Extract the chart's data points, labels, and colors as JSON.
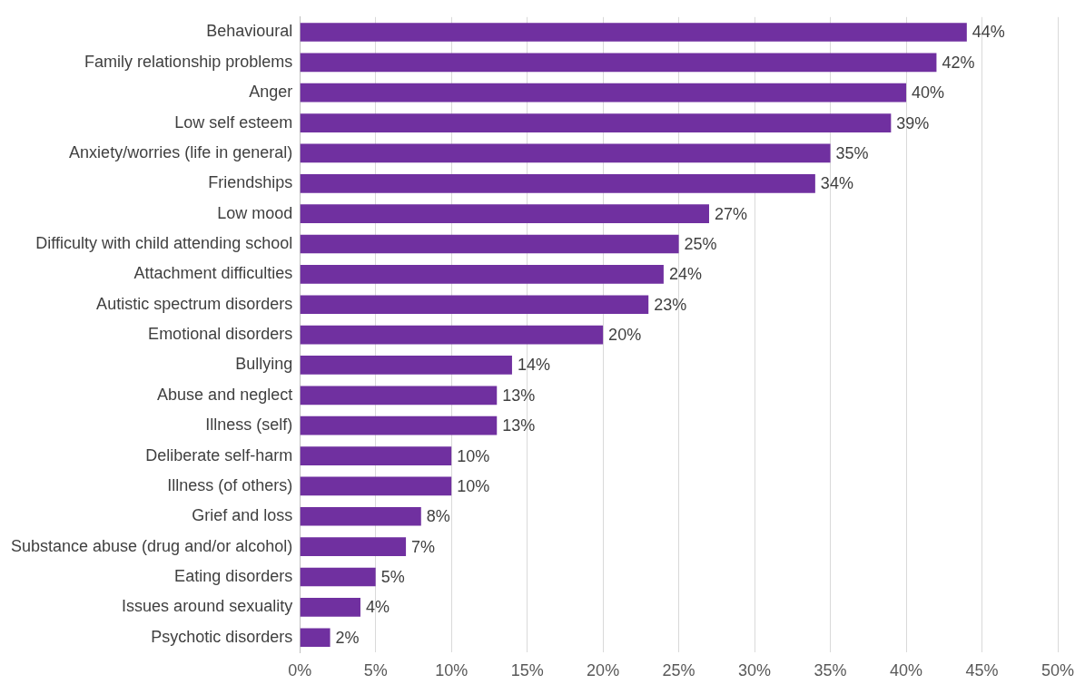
{
  "chart_data": {
    "type": "bar",
    "orientation": "horizontal",
    "categories": [
      "Behavioural",
      "Family relationship problems",
      "Anger",
      "Low self esteem",
      "Anxiety/worries (life in general)",
      "Friendships",
      "Low mood",
      "Difficulty with child attending school",
      "Attachment difficulties",
      "Autistic spectrum disorders",
      "Emotional disorders",
      "Bullying",
      "Abuse and neglect",
      "Illness (self)",
      "Deliberate self-harm",
      "Illness (of others)",
      "Grief and loss",
      "Substance abuse (drug and/or alcohol)",
      "Eating disorders",
      "Issues around sexuality",
      "Psychotic disorders"
    ],
    "values": [
      44,
      42,
      40,
      39,
      35,
      34,
      27,
      25,
      24,
      23,
      20,
      14,
      13,
      13,
      10,
      10,
      8,
      7,
      5,
      4,
      2
    ],
    "value_labels": [
      "44%",
      "42%",
      "40%",
      "39%",
      "35%",
      "34%",
      "27%",
      "25%",
      "24%",
      "23%",
      "20%",
      "14%",
      "13%",
      "13%",
      "10%",
      "10%",
      "8%",
      "7%",
      "5%",
      "4%",
      "2%"
    ],
    "color": "#7030a0",
    "xlim": [
      0,
      50
    ],
    "xticks": [
      {
        "value": 0,
        "label": "0%"
      },
      {
        "value": 5,
        "label": "5%"
      },
      {
        "value": 10,
        "label": "10%"
      },
      {
        "value": 15,
        "label": "15%"
      },
      {
        "value": 20,
        "label": "20%"
      },
      {
        "value": 25,
        "label": "25%"
      },
      {
        "value": 30,
        "label": "30%"
      },
      {
        "value": 35,
        "label": "35%"
      },
      {
        "value": 40,
        "label": "40%"
      },
      {
        "value": 45,
        "label": "45%"
      },
      {
        "value": 50,
        "label": "50%"
      }
    ],
    "grid": "x",
    "legend": false
  }
}
